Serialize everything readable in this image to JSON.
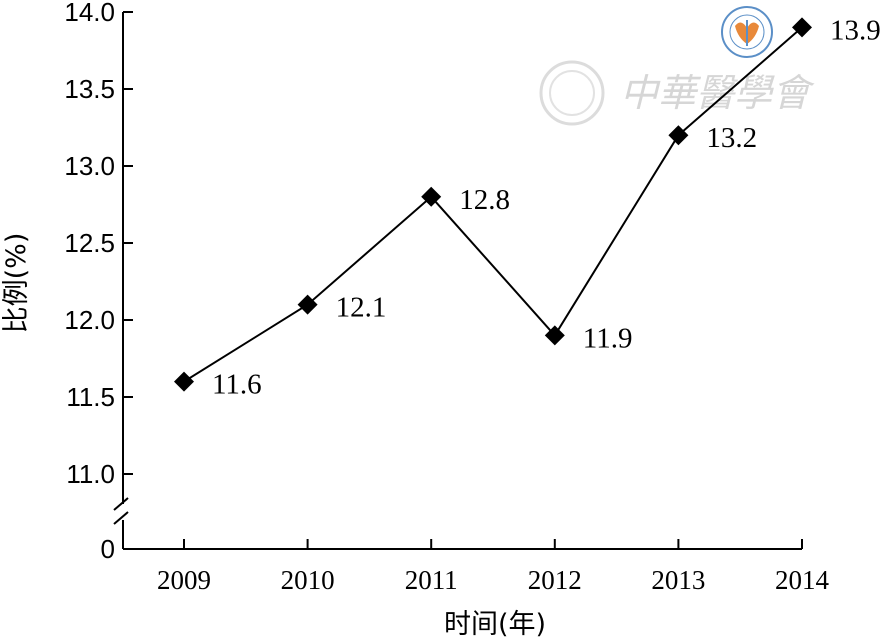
{
  "chart_data": {
    "type": "line",
    "categories": [
      "2009",
      "2010",
      "2011",
      "2012",
      "2013",
      "2014"
    ],
    "series": [
      {
        "values": [
          11.6,
          12.1,
          12.8,
          11.9,
          13.2,
          13.9
        ]
      }
    ],
    "data_labels": [
      "11.6",
      "12.1",
      "12.8",
      "11.9",
      "13.2",
      "13.9"
    ],
    "xlabel": "时间(年)",
    "ylabel": "比例(%)",
    "ylim": [
      11.0,
      14.0
    ],
    "axis_break": true,
    "yticks": [
      {
        "value": 14.0,
        "label": "14.0"
      },
      {
        "value": 13.5,
        "label": "13.5"
      },
      {
        "value": 13.0,
        "label": "13.0"
      },
      {
        "value": 12.5,
        "label": "12.5"
      },
      {
        "value": 12.0,
        "label": "12.0"
      },
      {
        "value": 11.5,
        "label": "11.5"
      },
      {
        "value": 11.0,
        "label": "11.0"
      },
      {
        "value": 0,
        "label": "0"
      }
    ],
    "marker": "diamond",
    "grid": false,
    "legend": "none",
    "line_color": "#000000"
  },
  "watermark": {
    "text": "中華醫學會",
    "logo_colors": {
      "outer": "#5b8fc7",
      "inner": "#e8893a"
    }
  }
}
